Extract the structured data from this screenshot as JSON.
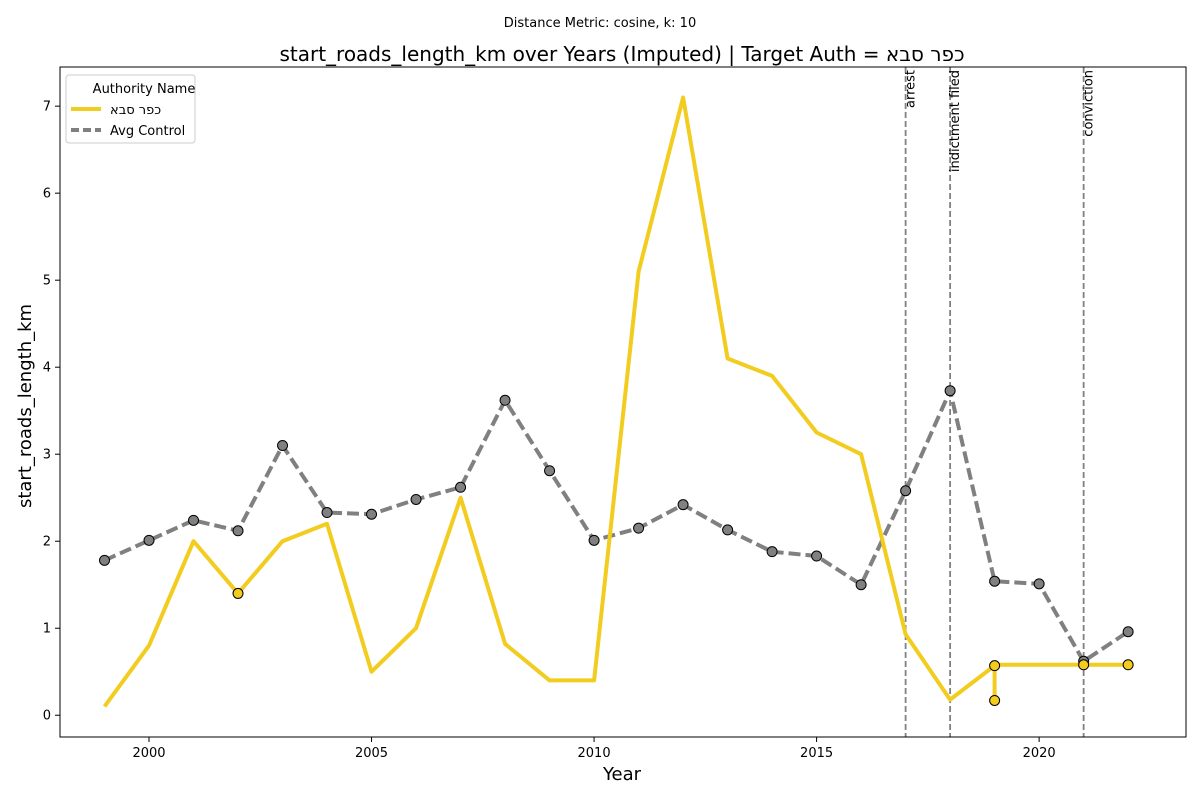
{
  "chart_data": {
    "type": "line",
    "suptitle": "Distance Metric: cosine, k: 10",
    "title": "start_roads_length_km over Years (Imputed) | Target Auth = כפר סבא",
    "xlabel": "Year",
    "ylabel": "start_roads_length_km",
    "xlim": [
      1998,
      2023.3
    ],
    "ylim": [
      -0.25,
      7.45
    ],
    "xticks": [
      2000,
      2005,
      2010,
      2015,
      2020
    ],
    "yticks": [
      0,
      1,
      2,
      3,
      4,
      5,
      6,
      7
    ],
    "grid": false,
    "legend": {
      "title": "Authority Name",
      "position": "top-left",
      "entries": [
        "כפר סבא",
        "Avg Control"
      ]
    },
    "series": [
      {
        "name": "כפר סבא",
        "color": "#f2cc1f",
        "style": "solid",
        "points": [
          [
            1999,
            0.1
          ],
          [
            2000,
            0.8
          ],
          [
            2001,
            2.0
          ],
          [
            2002,
            1.4
          ],
          [
            2003,
            2.0
          ],
          [
            2004,
            2.2
          ],
          [
            2005,
            0.5
          ],
          [
            2006,
            1.0
          ],
          [
            2007,
            2.5
          ],
          [
            2008,
            0.82
          ],
          [
            2009,
            0.4
          ],
          [
            2010,
            0.4
          ],
          [
            2011,
            5.1
          ],
          [
            2012,
            7.1
          ],
          [
            2013,
            4.1
          ],
          [
            2014,
            3.9
          ],
          [
            2015,
            3.25
          ],
          [
            2016,
            3.0
          ],
          [
            2017,
            0.93
          ],
          [
            2018,
            0.18
          ],
          [
            2019,
            0.57
          ],
          [
            2019,
            0.17
          ],
          [
            2019,
            0.58
          ],
          [
            2020,
            0.58
          ],
          [
            2021,
            0.58
          ],
          [
            2022,
            0.58
          ]
        ],
        "markers": [
          [
            2002,
            1.4
          ],
          [
            2019,
            0.57
          ],
          [
            2019,
            0.17
          ],
          [
            2021,
            0.58
          ],
          [
            2022,
            0.58
          ]
        ]
      },
      {
        "name": "Avg Control",
        "color": "#808080",
        "style": "dashed",
        "points": [
          [
            1999,
            1.78
          ],
          [
            2000,
            2.01
          ],
          [
            2001,
            2.24
          ],
          [
            2002,
            2.12
          ],
          [
            2003,
            3.1
          ],
          [
            2004,
            2.33
          ],
          [
            2005,
            2.31
          ],
          [
            2006,
            2.48
          ],
          [
            2007,
            2.62
          ],
          [
            2008,
            3.62
          ],
          [
            2009,
            2.81
          ],
          [
            2010,
            2.01
          ],
          [
            2011,
            2.15
          ],
          [
            2012,
            2.42
          ],
          [
            2013,
            2.13
          ],
          [
            2014,
            1.88
          ],
          [
            2015,
            1.83
          ],
          [
            2016,
            1.5
          ],
          [
            2017,
            2.58
          ],
          [
            2018,
            3.73
          ],
          [
            2019,
            1.54
          ],
          [
            2020,
            1.51
          ],
          [
            2021,
            0.62
          ],
          [
            2022,
            0.96
          ]
        ]
      }
    ],
    "events": [
      {
        "x": 2017,
        "label": "arrest"
      },
      {
        "x": 2018,
        "label": "indictment filed"
      },
      {
        "x": 2021,
        "label": "conviction"
      }
    ]
  }
}
